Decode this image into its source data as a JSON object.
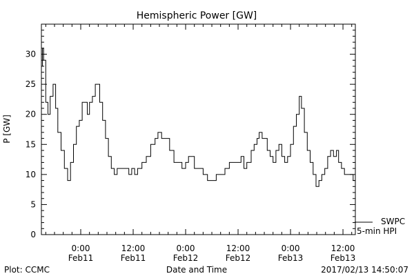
{
  "chart_data": {
    "type": "line",
    "title": "Hemispheric Power [GW]",
    "xlabel": "Date and Time",
    "ylabel": "P [GW]",
    "ylim": [
      0,
      35
    ],
    "xlim": [
      "2017-02-10 15:00",
      "2017-02-13 14:50"
    ],
    "yticks": [
      0,
      5,
      10,
      15,
      20,
      25,
      30
    ],
    "xticks": [
      {
        "t": "2017-02-11 00:00",
        "line1": "0:00",
        "line2": "Feb11"
      },
      {
        "t": "2017-02-11 12:00",
        "line1": "12:00",
        "line2": "Feb11"
      },
      {
        "t": "2017-02-12 00:00",
        "line1": "0:00",
        "line2": "Feb12"
      },
      {
        "t": "2017-02-12 12:00",
        "line1": "12:00",
        "line2": "Feb12"
      },
      {
        "t": "2017-02-13 00:00",
        "line1": "0:00",
        "line2": "Feb13"
      },
      {
        "t": "2017-02-13 12:00",
        "line1": "12:00",
        "line2": "Feb13"
      }
    ],
    "grid": false,
    "legend": {
      "position": "bottom-right",
      "lines": [
        "SWPC",
        "5-min HPI"
      ]
    },
    "series": [
      {
        "name": "SWPC 5-min HPI",
        "color": "#000000",
        "points": [
          [
            "2017-02-10 15:00",
            28
          ],
          [
            "2017-02-10 15:15",
            31
          ],
          [
            "2017-02-10 15:30",
            29
          ],
          [
            "2017-02-10 16:00",
            22
          ],
          [
            "2017-02-10 16:30",
            20
          ],
          [
            "2017-02-10 17:00",
            23
          ],
          [
            "2017-02-10 17:40",
            25
          ],
          [
            "2017-02-10 18:15",
            21
          ],
          [
            "2017-02-10 18:45",
            17
          ],
          [
            "2017-02-10 19:30",
            14
          ],
          [
            "2017-02-10 20:15",
            11
          ],
          [
            "2017-02-10 21:00",
            9
          ],
          [
            "2017-02-10 21:40",
            12
          ],
          [
            "2017-02-10 22:20",
            15
          ],
          [
            "2017-02-10 23:00",
            18
          ],
          [
            "2017-02-10 23:40",
            19
          ],
          [
            "2017-02-11 00:20",
            22
          ],
          [
            "2017-02-11 01:00",
            22
          ],
          [
            "2017-02-11 01:30",
            20
          ],
          [
            "2017-02-11 02:00",
            22
          ],
          [
            "2017-02-11 02:40",
            23
          ],
          [
            "2017-02-11 03:20",
            25
          ],
          [
            "2017-02-11 04:00",
            25
          ],
          [
            "2017-02-11 04:20",
            22
          ],
          [
            "2017-02-11 05:00",
            19
          ],
          [
            "2017-02-11 05:40",
            16
          ],
          [
            "2017-02-11 06:20",
            13
          ],
          [
            "2017-02-11 07:00",
            11
          ],
          [
            "2017-02-11 07:40",
            10
          ],
          [
            "2017-02-11 08:20",
            11
          ],
          [
            "2017-02-11 09:00",
            11
          ],
          [
            "2017-02-11 09:40",
            11
          ],
          [
            "2017-02-11 10:20",
            11
          ],
          [
            "2017-02-11 11:00",
            10
          ],
          [
            "2017-02-11 11:40",
            11
          ],
          [
            "2017-02-11 12:20",
            10
          ],
          [
            "2017-02-11 13:00",
            11
          ],
          [
            "2017-02-11 14:00",
            12
          ],
          [
            "2017-02-11 15:00",
            13
          ],
          [
            "2017-02-11 16:00",
            15
          ],
          [
            "2017-02-11 17:00",
            16
          ],
          [
            "2017-02-11 17:40",
            17
          ],
          [
            "2017-02-11 18:30",
            16
          ],
          [
            "2017-02-11 19:30",
            16
          ],
          [
            "2017-02-11 20:20",
            14
          ],
          [
            "2017-02-11 21:20",
            12
          ],
          [
            "2017-02-11 22:20",
            12
          ],
          [
            "2017-02-11 23:10",
            11
          ],
          [
            "2017-02-12 00:00",
            12
          ],
          [
            "2017-02-12 00:40",
            13
          ],
          [
            "2017-02-12 01:20",
            13
          ],
          [
            "2017-02-12 02:00",
            11
          ],
          [
            "2017-02-12 03:00",
            11
          ],
          [
            "2017-02-12 04:00",
            10
          ],
          [
            "2017-02-12 05:00",
            9
          ],
          [
            "2017-02-12 06:00",
            9
          ],
          [
            "2017-02-12 07:00",
            10
          ],
          [
            "2017-02-12 08:00",
            10
          ],
          [
            "2017-02-12 09:00",
            11
          ],
          [
            "2017-02-12 10:00",
            12
          ],
          [
            "2017-02-12 11:00",
            12
          ],
          [
            "2017-02-12 12:00",
            12
          ],
          [
            "2017-02-12 12:40",
            13
          ],
          [
            "2017-02-12 13:20",
            11
          ],
          [
            "2017-02-12 14:00",
            12
          ],
          [
            "2017-02-12 15:00",
            14
          ],
          [
            "2017-02-12 15:40",
            15
          ],
          [
            "2017-02-12 16:20",
            16
          ],
          [
            "2017-02-12 16:50",
            17
          ],
          [
            "2017-02-12 17:30",
            16
          ],
          [
            "2017-02-12 18:00",
            16
          ],
          [
            "2017-02-12 18:40",
            14
          ],
          [
            "2017-02-12 19:20",
            13
          ],
          [
            "2017-02-12 20:00",
            12
          ],
          [
            "2017-02-12 20:40",
            14
          ],
          [
            "2017-02-12 21:20",
            15
          ],
          [
            "2017-02-12 22:00",
            13
          ],
          [
            "2017-02-12 22:40",
            12
          ],
          [
            "2017-02-12 23:20",
            13
          ],
          [
            "2017-02-13 00:00",
            15
          ],
          [
            "2017-02-13 00:40",
            18
          ],
          [
            "2017-02-13 01:20",
            20
          ],
          [
            "2017-02-13 02:00",
            23
          ],
          [
            "2017-02-13 02:30",
            21
          ],
          [
            "2017-02-13 03:10",
            17
          ],
          [
            "2017-02-13 03:50",
            14
          ],
          [
            "2017-02-13 04:30",
            12
          ],
          [
            "2017-02-13 05:10",
            10
          ],
          [
            "2017-02-13 05:50",
            8
          ],
          [
            "2017-02-13 06:30",
            9
          ],
          [
            "2017-02-13 07:10",
            10
          ],
          [
            "2017-02-13 07:50",
            11
          ],
          [
            "2017-02-13 08:30",
            13
          ],
          [
            "2017-02-13 09:10",
            14
          ],
          [
            "2017-02-13 09:50",
            13
          ],
          [
            "2017-02-13 10:30",
            14
          ],
          [
            "2017-02-13 11:00",
            12
          ],
          [
            "2017-02-13 11:40",
            11
          ],
          [
            "2017-02-13 12:20",
            10
          ],
          [
            "2017-02-13 13:00",
            10
          ],
          [
            "2017-02-13 13:40",
            10
          ],
          [
            "2017-02-13 14:20",
            9
          ],
          [
            "2017-02-13 14:50",
            9
          ]
        ]
      }
    ]
  },
  "footer": {
    "left": "Plot: CCMC",
    "center": "Date and Time",
    "right": "2017/02/13 14:50:07"
  }
}
